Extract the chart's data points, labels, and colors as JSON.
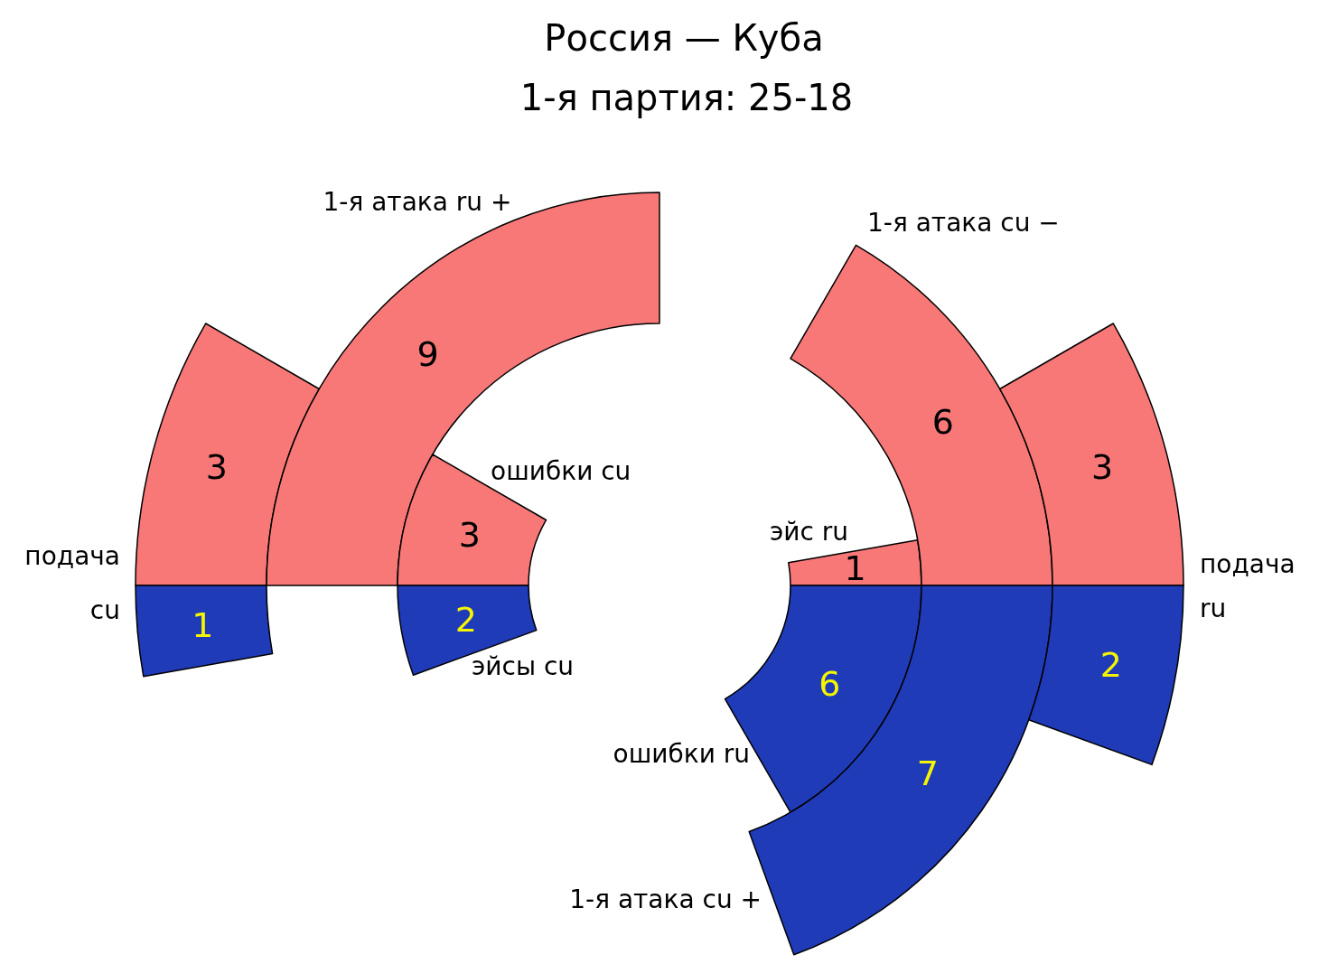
{
  "chart_data": {
    "type": "other",
    "title": "Россия — Куба",
    "subtitle": "1-я партия: 25-18",
    "categories": [
      "подача",
      "cu",
      "1-я атака ru +",
      "ошибки cu",
      "эйсы cu",
      "эйс ru",
      "ошибки ru",
      "1-я атака cu −",
      "1-я атака cu +",
      "подача",
      "ru"
    ],
    "values": [
      3,
      1,
      9,
      3,
      2,
      1,
      6,
      6,
      7,
      3,
      2
    ],
    "colors": [
      "#f87878",
      "#1f3bb8",
      "#f87878",
      "#f87878",
      "#1f3bb8",
      "#f87878",
      "#1f3bb8",
      "#f87878",
      "#1f3bb8",
      "#f87878",
      "#1f3bb8"
    ],
    "data_labels": true
  }
}
